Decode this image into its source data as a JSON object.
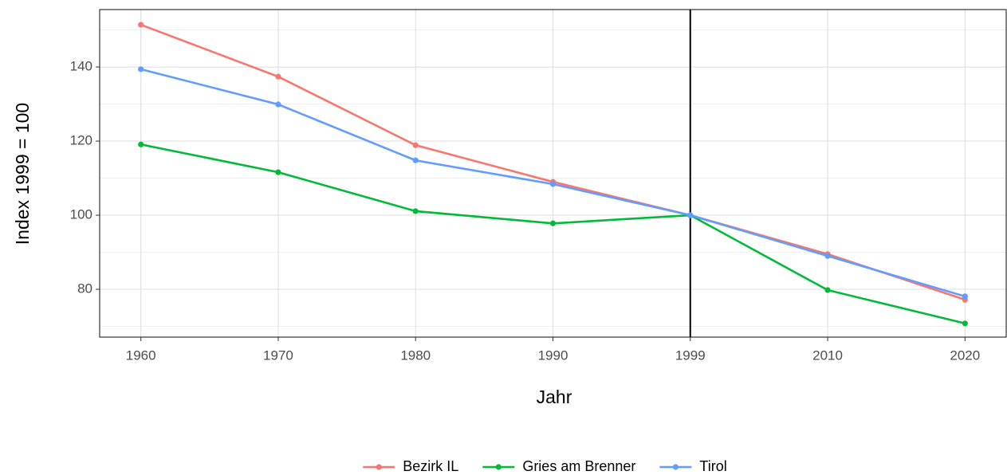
{
  "chart_data": {
    "type": "line",
    "x_label": "Jahr",
    "y_label": "Index 1999 = 100",
    "categories": [
      "1960",
      "1970",
      "1980",
      "1990",
      "1999",
      "2010",
      "2020"
    ],
    "series": [
      {
        "name": "Bezirk IL",
        "color": "#F8766D",
        "values": [
          151.4,
          137.4,
          118.9,
          109.0,
          100,
          89.5,
          77.2
        ]
      },
      {
        "name": "Gries am Brenner",
        "color": "#00BA38",
        "values": [
          119.1,
          111.6,
          101.1,
          97.8,
          100,
          79.8,
          70.8
        ]
      },
      {
        "name": "Tirol",
        "color": "#619CFF",
        "values": [
          139.4,
          129.9,
          114.8,
          108.4,
          100,
          89.0,
          78.1
        ]
      }
    ],
    "vline": "1999",
    "ylim": [
      67.1,
      155.5
    ],
    "yticks": [
      80,
      100,
      120,
      140
    ],
    "yminor": [
      70,
      90,
      110,
      130,
      150
    ],
    "grid": true,
    "legend": "bottom"
  }
}
